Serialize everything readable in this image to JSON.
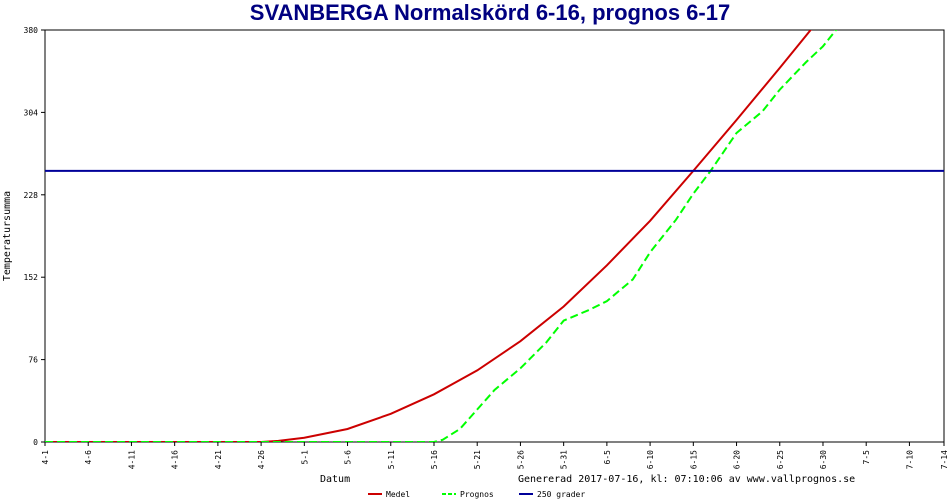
{
  "chart_data": {
    "type": "line",
    "title": "SVANBERGA Normalskörd 6-16, prognos 6-17",
    "xlabel": "Datum",
    "ylabel": "Temperatursumma",
    "footer": "Genererad 2017-07-16, kl: 07:10:06 av www.vallprognos.se",
    "ylim": [
      0,
      380
    ],
    "yticks": [
      0,
      76,
      152,
      228,
      304,
      380
    ],
    "xticks": [
      "4-1",
      "4-6",
      "4-11",
      "4-16",
      "4-21",
      "4-26",
      "5-1",
      "5-6",
      "5-11",
      "5-16",
      "5-21",
      "5-26",
      "5-31",
      "6-5",
      "6-10",
      "6-15",
      "6-20",
      "6-25",
      "6-30",
      "7-5",
      "7-10",
      "7-14"
    ],
    "xtick_days": [
      0,
      5,
      10,
      15,
      20,
      25,
      30,
      35,
      40,
      45,
      50,
      55,
      60,
      65,
      70,
      75,
      80,
      85,
      90,
      95,
      100,
      104
    ],
    "series": [
      {
        "name": "Medel",
        "color": "#cc0000",
        "dash": "solid",
        "x": [
          0,
          25,
          27,
          30,
          35,
          40,
          45,
          50,
          55,
          60,
          65,
          70,
          75,
          80,
          85,
          90,
          91
        ],
        "y": [
          0,
          0,
          1,
          4,
          12,
          26,
          44,
          66,
          93,
          125,
          163,
          204,
          250,
          297,
          345,
          394,
          400
        ]
      },
      {
        "name": "Prognos",
        "color": "#00ff00",
        "dash": "dashed",
        "x": [
          0,
          45,
          46,
          48,
          50,
          52,
          55,
          58,
          60,
          63,
          65,
          68,
          70,
          73,
          75,
          77,
          80,
          83,
          85,
          88,
          90,
          92,
          94
        ],
        "y": [
          0,
          0,
          2,
          12,
          30,
          48,
          68,
          92,
          112,
          122,
          130,
          150,
          175,
          205,
          229,
          250,
          285,
          305,
          325,
          350,
          365,
          385,
          405
        ]
      },
      {
        "name": "250 grader",
        "color": "#000099",
        "dash": "solid",
        "x": [
          0,
          104
        ],
        "y": [
          250,
          250
        ]
      }
    ],
    "legend_position": "bottom",
    "grid": false
  }
}
